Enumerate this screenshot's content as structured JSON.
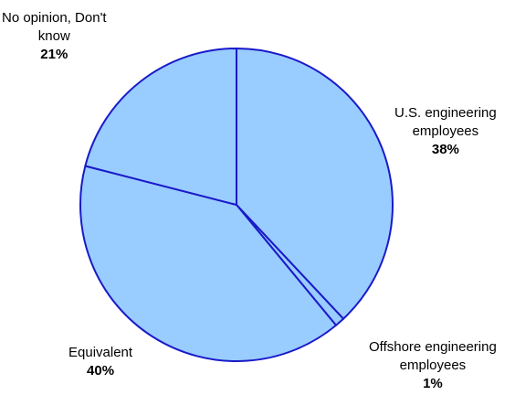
{
  "chart_data": {
    "type": "pie",
    "title": "",
    "start_angle_deg": 0,
    "direction": "clockwise",
    "slices": [
      {
        "label_lines": [
          "U.S. engineering",
          "employees"
        ],
        "value": 38,
        "value_label": "38%"
      },
      {
        "label_lines": [
          "Offshore engineering",
          "employees"
        ],
        "value": 1,
        "value_label": "1%"
      },
      {
        "label_lines": [
          "Equivalent"
        ],
        "value": 40,
        "value_label": "40%"
      },
      {
        "label_lines": [
          "No opinion, Don't",
          "know"
        ],
        "value": 21,
        "value_label": "21%"
      }
    ],
    "colors": {
      "slice_fill": "#99ccff",
      "slice_stroke": "#1a1ac8"
    }
  }
}
